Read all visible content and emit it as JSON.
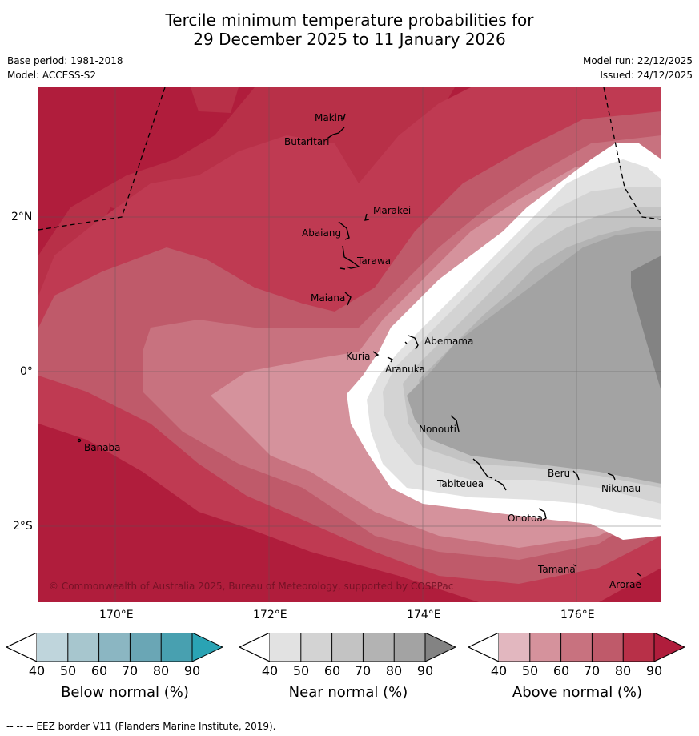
{
  "title": {
    "line1": "Tercile minimum temperature probabilities for",
    "line2": "29 December 2025 to 11 January 2026"
  },
  "meta": {
    "base_period": "Base period: 1981-2018",
    "model": "Model: ACCESS-S2",
    "model_run": "Model run: 22/12/2025",
    "issued": "Issued: 24/12/2025"
  },
  "map": {
    "lat_labels": [
      "2°N",
      "0°",
      "2°S"
    ],
    "lon_labels": [
      "170°E",
      "172°E",
      "174°E",
      "176°E"
    ],
    "places": [
      "Makin",
      "Butaritari",
      "Marakei",
      "Abaiang",
      "Tarawa",
      "Maiana",
      "Abemama",
      "Kuria",
      "Aranuka",
      "Banaba",
      "Nonouti",
      "Tabiteuea",
      "Beru",
      "Nikunau",
      "Onotoa",
      "Tamana",
      "Arorae"
    ],
    "copyright": "© Commonwealth of Australia 2025, Bureau of Meteorology, supported by COSPPac"
  },
  "colorbars": [
    {
      "label": "Below normal (%)",
      "ticks": [
        "40",
        "50",
        "60",
        "70",
        "80",
        "90"
      ],
      "colors": [
        "#bfd5dc",
        "#a7c6ce",
        "#8bb6c2",
        "#6aa6b5",
        "#48a0b0",
        "#2aa3b4"
      ]
    },
    {
      "label": "Near normal (%)",
      "ticks": [
        "40",
        "50",
        "60",
        "70",
        "80",
        "90"
      ],
      "colors": [
        "#e2e2e2",
        "#d3d3d3",
        "#c3c3c3",
        "#b3b3b3",
        "#a3a3a3",
        "#838383"
      ]
    },
    {
      "label": "Above normal (%)",
      "ticks": [
        "40",
        "50",
        "60",
        "70",
        "80",
        "90"
      ],
      "colors": [
        "#e2b7bf",
        "#d5929c",
        "#c8727f",
        "#bf5a6a",
        "#b83048",
        "#b01d3c"
      ]
    }
  ],
  "footer": "--  --  -- EEZ border V11 (Flanders Marine Institute, 2019)."
}
